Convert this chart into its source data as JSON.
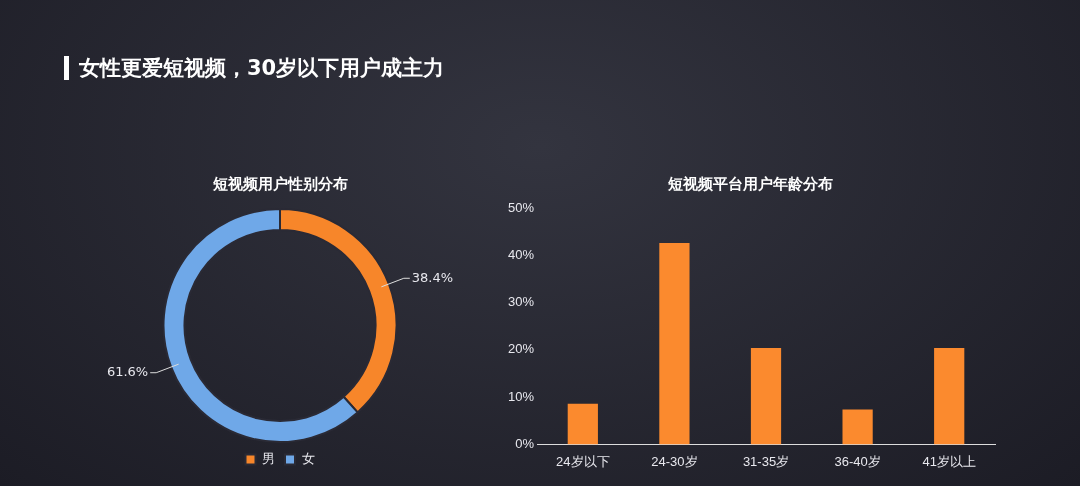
{
  "chart_data": [
    {
      "type": "other",
      "title": "女性更爱短视频，30岁以下用户成主力"
    },
    {
      "type": "donut",
      "title": "短视频用户性别分布",
      "categories": [
        "男",
        "女"
      ],
      "values": [
        38.4,
        61.6
      ],
      "colors": [
        "#f7862a",
        "#6fa8e8"
      ],
      "value_labels": [
        "38.4%",
        "61.6%"
      ],
      "legend": "bottom"
    },
    {
      "type": "bar",
      "title": "短视频平台用户年龄分布",
      "categories": [
        "24岁以下",
        "24-30岁",
        "31-35岁",
        "36-40岁",
        "41岁以上"
      ],
      "values": [
        8.6,
        42.6,
        20.4,
        7.4,
        20.4
      ],
      "color": "#fb8a2e",
      "ylim": [
        0,
        50
      ],
      "yticks": [
        {
          "value": 0,
          "label": "0%"
        },
        {
          "value": 10,
          "label": "10%"
        },
        {
          "value": 20,
          "label": "20%"
        },
        {
          "value": 30,
          "label": "30%"
        },
        {
          "value": 40,
          "label": "40%"
        },
        {
          "value": 50,
          "label": "50%"
        }
      ],
      "grid": false,
      "legend": false
    }
  ]
}
